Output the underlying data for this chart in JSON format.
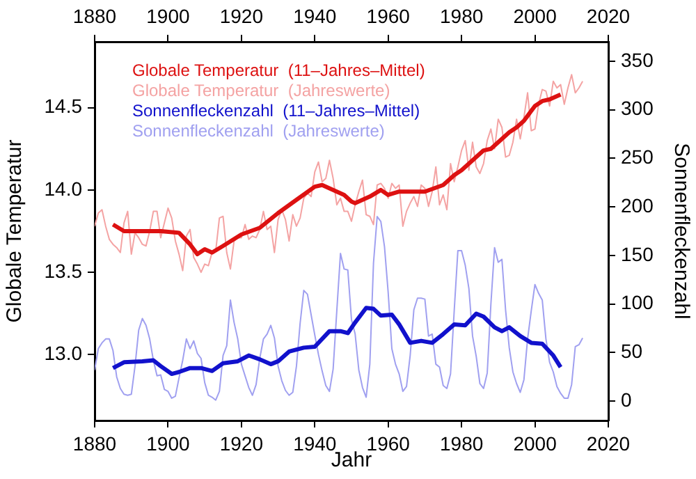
{
  "chart_data": {
    "type": "line",
    "xlabel": "Jahr",
    "ylabel": "Globale Temperatur",
    "y2label": "Sonnenfleckenzahl",
    "xlim": [
      1880,
      2020
    ],
    "xticks": [
      1880,
      1900,
      1920,
      1940,
      1960,
      1980,
      2000,
      2020
    ],
    "x2lim": [
      1880,
      2020
    ],
    "x2ticks": [
      1880,
      1900,
      1920,
      1940,
      1960,
      1980,
      2000,
      2020
    ],
    "ylim": [
      12.6,
      14.9
    ],
    "yticks": [
      {
        "value": 13,
        "label": "13.0"
      },
      {
        "value": 13.5,
        "label": "13.5"
      },
      {
        "value": 14,
        "label": "14.0"
      },
      {
        "value": 14.5,
        "label": "14.5"
      }
    ],
    "y2lim": [
      -20,
      370
    ],
    "y2ticks": [
      0,
      50,
      100,
      150,
      200,
      250,
      300,
      350
    ],
    "grid": false,
    "legend": "top left",
    "marker": "none",
    "line_style": "solid",
    "series": [
      {
        "name": "Globale Temperatur  (11–Jahres–Mittel)",
        "color": "#dd1111",
        "x": [
          1885,
          1888,
          1893,
          1898,
          1903,
          1906,
          1908,
          1910,
          1912,
          1915,
          1920,
          1925,
          1930,
          1935,
          1940,
          1942,
          1946,
          1948,
          1950,
          1951,
          1955,
          1958,
          1960,
          1963,
          1965,
          1970,
          1975,
          1978,
          1980,
          1983,
          1986,
          1988,
          1990,
          1993,
          1995,
          1997,
          2000,
          2002,
          2004,
          2007
        ],
        "values": [
          13.79,
          13.75,
          13.75,
          13.75,
          13.74,
          13.67,
          13.61,
          13.64,
          13.62,
          13.66,
          13.73,
          13.77,
          13.86,
          13.94,
          14.02,
          14.03,
          13.99,
          13.97,
          13.93,
          13.92,
          13.96,
          14.0,
          13.97,
          13.99,
          13.99,
          13.99,
          14.03,
          14.09,
          14.12,
          14.18,
          14.24,
          14.25,
          14.29,
          14.35,
          14.38,
          14.42,
          14.51,
          14.54,
          14.55,
          14.58
        ]
      },
      {
        "name": "Globale Temperatur  (Jahreswerte)",
        "color": "#f4a3a3",
        "x": [
          1880,
          1881,
          1882,
          1883,
          1884,
          1885,
          1886,
          1887,
          1888,
          1889,
          1890,
          1891,
          1892,
          1893,
          1894,
          1895,
          1896,
          1897,
          1898,
          1899,
          1900,
          1901,
          1902,
          1903,
          1904,
          1905,
          1906,
          1907,
          1908,
          1909,
          1910,
          1911,
          1912,
          1913,
          1914,
          1915,
          1916,
          1917,
          1918,
          1919,
          1920,
          1921,
          1922,
          1923,
          1924,
          1925,
          1926,
          1927,
          1928,
          1929,
          1930,
          1931,
          1932,
          1933,
          1934,
          1935,
          1936,
          1937,
          1938,
          1939,
          1940,
          1941,
          1942,
          1943,
          1944,
          1945,
          1946,
          1947,
          1948,
          1949,
          1950,
          1951,
          1952,
          1953,
          1954,
          1955,
          1956,
          1957,
          1958,
          1959,
          1960,
          1961,
          1962,
          1963,
          1964,
          1965,
          1966,
          1967,
          1968,
          1969,
          1970,
          1971,
          1972,
          1973,
          1974,
          1975,
          1976,
          1977,
          1978,
          1979,
          1980,
          1981,
          1982,
          1983,
          1984,
          1985,
          1986,
          1987,
          1988,
          1989,
          1990,
          1991,
          1992,
          1993,
          1994,
          1995,
          1996,
          1997,
          1998,
          1999,
          2000,
          2001,
          2002,
          2003,
          2004,
          2005,
          2006,
          2007,
          2008,
          2009,
          2010,
          2011,
          2012,
          2013
        ],
        "values": [
          13.78,
          13.86,
          13.88,
          13.78,
          13.7,
          13.67,
          13.65,
          13.62,
          13.8,
          13.87,
          13.61,
          13.74,
          13.71,
          13.67,
          13.66,
          13.75,
          13.87,
          13.87,
          13.71,
          13.8,
          13.89,
          13.83,
          13.69,
          13.61,
          13.51,
          13.72,
          13.76,
          13.59,
          13.55,
          13.5,
          13.55,
          13.54,
          13.62,
          13.63,
          13.83,
          13.84,
          13.62,
          13.52,
          13.69,
          13.71,
          13.71,
          13.79,
          13.7,
          13.72,
          13.71,
          13.76,
          13.87,
          13.76,
          13.78,
          13.62,
          13.82,
          13.88,
          13.82,
          13.69,
          13.85,
          13.78,
          13.83,
          13.95,
          13.98,
          13.96,
          14.11,
          14.17,
          14.05,
          14.07,
          14.18,
          14.07,
          13.91,
          13.95,
          13.87,
          13.87,
          13.81,
          13.91,
          13.99,
          14.06,
          13.85,
          13.84,
          13.79,
          14.03,
          14.04,
          14.01,
          13.95,
          14.04,
          14.01,
          14.03,
          13.78,
          13.87,
          13.92,
          13.96,
          13.9,
          14.03,
          14.01,
          13.9,
          13.99,
          14.14,
          13.91,
          13.97,
          13.88,
          14.16,
          14.05,
          14.14,
          14.24,
          14.3,
          14.12,
          14.29,
          14.14,
          14.1,
          14.16,
          14.3,
          14.37,
          14.25,
          14.43,
          14.38,
          14.2,
          14.21,
          14.29,
          14.43,
          14.31,
          14.44,
          14.59,
          14.36,
          14.37,
          14.52,
          14.61,
          14.6,
          14.51,
          14.66,
          14.62,
          14.64,
          14.52,
          14.62,
          14.7,
          14.59,
          14.62,
          14.66
        ]
      },
      {
        "name": "Sonnenfleckenzahl  (11–Jahres–Mittel)",
        "color": "#1111cc",
        "axis": "y2",
        "x": [
          1885,
          1888,
          1893,
          1896,
          1898,
          1901,
          1903,
          1906,
          1909,
          1912,
          1915,
          1919,
          1922,
          1925,
          1928,
          1930,
          1933,
          1937,
          1940,
          1944,
          1947,
          1949,
          1951,
          1954,
          1956,
          1958,
          1961,
          1963,
          1966,
          1969,
          1972,
          1975,
          1978,
          1981,
          1984,
          1986,
          1989,
          1991,
          1993,
          1996,
          1999,
          2002,
          2005,
          2007
        ],
        "values": [
          34,
          40,
          41,
          42,
          36,
          28,
          30,
          34,
          34,
          31,
          39,
          41,
          47,
          43,
          38,
          41,
          51,
          55,
          56,
          72,
          72,
          70,
          81,
          96,
          95,
          88,
          89,
          79,
          60,
          62,
          60,
          69,
          79,
          78,
          90,
          87,
          76,
          72,
          76,
          67,
          60,
          59,
          47,
          35
        ]
      },
      {
        "name": "Sonnenfleckenzahl  (Jahreswerte)",
        "color": "#a0a0f0",
        "axis": "y2",
        "x": [
          1880,
          1881,
          1882,
          1883,
          1884,
          1885,
          1886,
          1887,
          1888,
          1889,
          1890,
          1891,
          1892,
          1893,
          1894,
          1895,
          1896,
          1897,
          1898,
          1899,
          1900,
          1901,
          1902,
          1903,
          1904,
          1905,
          1906,
          1907,
          1908,
          1909,
          1910,
          1911,
          1912,
          1913,
          1914,
          1915,
          1916,
          1917,
          1918,
          1919,
          1920,
          1921,
          1922,
          1923,
          1924,
          1925,
          1926,
          1927,
          1928,
          1929,
          1930,
          1931,
          1932,
          1933,
          1934,
          1935,
          1936,
          1937,
          1938,
          1939,
          1940,
          1941,
          1942,
          1943,
          1944,
          1945,
          1946,
          1947,
          1948,
          1949,
          1950,
          1951,
          1952,
          1953,
          1954,
          1955,
          1956,
          1957,
          1958,
          1959,
          1960,
          1961,
          1962,
          1963,
          1964,
          1965,
          1966,
          1967,
          1968,
          1969,
          1970,
          1971,
          1972,
          1973,
          1974,
          1975,
          1976,
          1977,
          1978,
          1979,
          1980,
          1981,
          1982,
          1983,
          1984,
          1985,
          1986,
          1987,
          1988,
          1989,
          1990,
          1991,
          1992,
          1993,
          1994,
          1995,
          1996,
          1997,
          1998,
          1999,
          2000,
          2001,
          2002,
          2003,
          2004,
          2005,
          2006,
          2007,
          2008,
          2009,
          2010,
          2011,
          2012,
          2013
        ],
        "values": [
          32,
          54,
          60,
          64,
          64,
          52,
          25,
          13,
          7,
          6,
          7,
          36,
          73,
          85,
          78,
          64,
          42,
          26,
          27,
          12,
          10,
          3,
          5,
          24,
          42,
          64,
          54,
          62,
          49,
          44,
          19,
          6,
          4,
          1,
          10,
          47,
          57,
          104,
          81,
          64,
          38,
          26,
          14,
          6,
          17,
          44,
          64,
          69,
          78,
          65,
          36,
          21,
          11,
          6,
          9,
          36,
          80,
          114,
          110,
          89,
          68,
          48,
          31,
          16,
          10,
          33,
          93,
          152,
          136,
          135,
          84,
          69,
          32,
          14,
          4,
          38,
          142,
          190,
          185,
          159,
          112,
          54,
          38,
          28,
          10,
          15,
          47,
          94,
          106,
          106,
          105,
          67,
          69,
          38,
          35,
          16,
          13,
          28,
          93,
          155,
          155,
          140,
          116,
          67,
          46,
          18,
          13,
          29,
          100,
          158,
          143,
          146,
          94,
          55,
          30,
          18,
          9,
          22,
          64,
          93,
          120,
          111,
          104,
          64,
          40,
          30,
          15,
          8,
          3,
          3,
          17,
          56,
          58,
          65
        ]
      }
    ]
  }
}
